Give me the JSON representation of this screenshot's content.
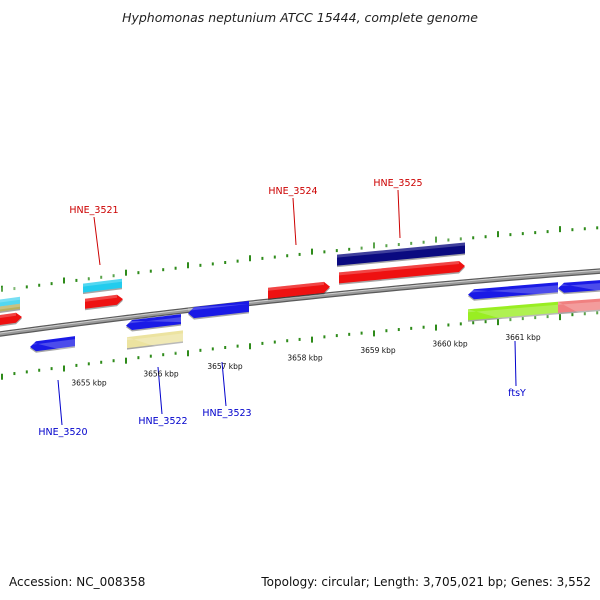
{
  "title": "Hyphomonas neptunium ATCC 15444, complete genome",
  "footer": {
    "accession": "Accession: NC_008358",
    "topology": "Topology: circular; Length: 3,705,021 bp; Genes: 3,552"
  },
  "colors": {
    "backbone": "#7a7a7a",
    "tick": "#2e8b1a",
    "label_top": "#cc0000",
    "label_bottom": "#0000cc",
    "gene_red": "#ee1111",
    "gene_blue": "#1a1ae6",
    "gene_navy": "#0a0a80",
    "gene_cyan": "#22ccee",
    "gene_khaki": "#ece3a0",
    "gene_lime": "#99ee22",
    "gene_salmon": "#f08080",
    "gene_olive": "#b8b060"
  },
  "scale": {
    "ticks": [
      {
        "label": "3655 kbp"
      },
      {
        "label": "3656 kbp"
      },
      {
        "label": "3657 kbp"
      },
      {
        "label": "3658 kbp"
      },
      {
        "label": "3659 kbp"
      },
      {
        "label": "3660 kbp"
      },
      {
        "label": "3661 kbp"
      }
    ]
  },
  "gene_labels": {
    "top": [
      {
        "text": "HNE_3521"
      },
      {
        "text": "HNE_3524"
      },
      {
        "text": "HNE_3525"
      }
    ],
    "bottom": [
      {
        "text": "HNE_3520"
      },
      {
        "text": "HNE_3522"
      },
      {
        "text": "HNE_3523"
      },
      {
        "text": "ftsY"
      }
    ]
  },
  "genes": [
    {
      "name": "gene-red-left-edge",
      "color": "gene_red"
    },
    {
      "name": "gene-cyan-left-edge",
      "color": "gene_cyan"
    },
    {
      "name": "gene-olive-left-edge",
      "color": "gene_olive"
    },
    {
      "name": "gene-cyan-hne3521",
      "color": "gene_cyan"
    },
    {
      "name": "gene-red-hne3521",
      "color": "gene_red"
    },
    {
      "name": "gene-blue-hne3520",
      "color": "gene_blue"
    },
    {
      "name": "gene-blue-a",
      "color": "gene_blue"
    },
    {
      "name": "gene-khaki-hne3522",
      "color": "gene_khaki"
    },
    {
      "name": "gene-blue-hne3523",
      "color": "gene_blue"
    },
    {
      "name": "gene-red-hne3524",
      "color": "gene_red"
    },
    {
      "name": "gene-navy-hne3525",
      "color": "gene_navy"
    },
    {
      "name": "gene-red-hne3525",
      "color": "gene_red"
    },
    {
      "name": "gene-blue-ftsy",
      "color": "gene_blue"
    },
    {
      "name": "gene-blue-right-edge",
      "color": "gene_blue"
    },
    {
      "name": "gene-lime-ftsy",
      "color": "gene_lime"
    },
    {
      "name": "gene-salmon-right-edge",
      "color": "gene_salmon"
    }
  ]
}
